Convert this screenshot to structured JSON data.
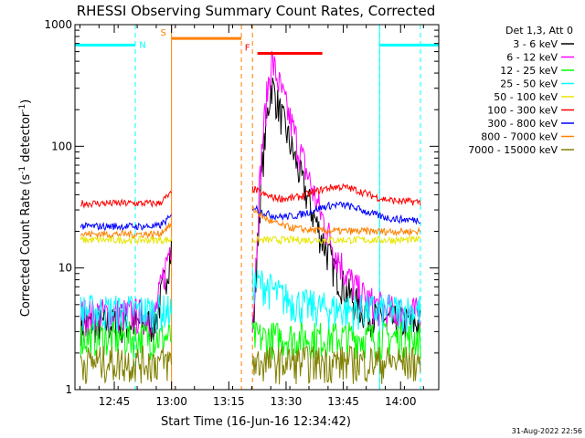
{
  "chart_data": {
    "type": "line",
    "title": "RHESSI Observing Summary Count Rates, Corrected",
    "xlabel": "Start Time (16-Jun-16 12:34:42)",
    "ylabel": "Corrected Count Rate (s⁻¹ detector⁻¹)",
    "ylabel_parts": {
      "main": "Corrected Count Rate (s",
      "sup1": "-1",
      "mid": " detector",
      "sup2": "-1",
      "end": ")"
    },
    "y_scale": "log",
    "ylim": [
      1,
      1000
    ],
    "xlim_minutes": [
      0,
      95.3
    ],
    "x_ticks": [
      {
        "t": 10.3,
        "label": "12:45"
      },
      {
        "t": 25.3,
        "label": "13:00"
      },
      {
        "t": 40.3,
        "label": "13:15"
      },
      {
        "t": 55.3,
        "label": "13:30"
      },
      {
        "t": 70.3,
        "label": "13:45"
      },
      {
        "t": 85.3,
        "label": "14:00"
      }
    ],
    "y_ticks": [
      {
        "v": 1,
        "label": "1"
      },
      {
        "v": 10,
        "label": "10"
      },
      {
        "v": 100,
        "label": "100"
      },
      {
        "v": 1000,
        "label": "1000"
      }
    ],
    "legend_title": "Det 1,3, Att 0",
    "legend_position": "right",
    "series": [
      {
        "name": "3 - 6 keV",
        "color": "#000000"
      },
      {
        "name": "6 - 12 keV",
        "color": "#ff00ff"
      },
      {
        "name": "12 - 25 keV",
        "color": "#00ff00"
      },
      {
        "name": "25 - 50 keV",
        "color": "#00ffff"
      },
      {
        "name": "50 - 100 keV",
        "color": "#e6e600"
      },
      {
        "name": "100 - 300 keV",
        "color": "#ff0000"
      },
      {
        "name": "300 - 800 keV",
        "color": "#0000ff"
      },
      {
        "name": "800 - 7000 keV",
        "color": "#ff8000"
      },
      {
        "name": "7000 - 15000 keV",
        "color": "#808000"
      }
    ],
    "data_segments": [
      {
        "start": 1.5,
        "end": 25.3,
        "levels": {
          "3 - 6 keV": 3.5,
          "6 - 12 keV": 4.2,
          "12 - 25 keV": 2.7,
          "25 - 50 keV": 4.5,
          "50 - 100 keV": 17,
          "100 - 300 keV": 34,
          "300 - 800 keV": 22,
          "800 - 7000 keV": 19,
          "7000 - 15000 keV": 1.7
        }
      },
      {
        "start": 46.5,
        "end": 90.5,
        "levels": {
          "3 - 6 keV": 3.5,
          "6 - 12 keV": 4.2,
          "12 - 25 keV": 2.7,
          "25 - 50 keV": 4.5,
          "50 - 100 keV": 17,
          "100 - 300 keV": 38,
          "300 - 800 keV": 27,
          "800 - 7000 keV": 20,
          "7000 - 15000 keV": 1.7
        }
      }
    ],
    "flare": {
      "start_time": "13:21",
      "peak_time": "13:24",
      "peak_value_3_6_keV": 330,
      "peak_value_6_12_keV": 520
    },
    "annotations": [
      {
        "label": "N",
        "color": "#00ffff",
        "kind": "night",
        "t_start": 0,
        "t_end": 15.8,
        "value": 680
      },
      {
        "label": "",
        "color": "#00ffff",
        "kind": "night",
        "t_start": 79.8,
        "t_end": 95.3,
        "value": 680
      },
      {
        "label": "S",
        "color": "#ff8000",
        "kind": "saa",
        "t_start": 25.3,
        "t_end": 43.6,
        "value": 770
      },
      {
        "label": "F",
        "color": "#ff0000",
        "kind": "flare",
        "t_start": 47.8,
        "t_end": 64.8,
        "value": 580
      }
    ],
    "dashed_markers": [
      {
        "t": 15.8,
        "color": "#00ffff"
      },
      {
        "t": 79.8,
        "color": "#00ffff"
      },
      {
        "t": 43.6,
        "color": "#ff8000"
      },
      {
        "t": 46.5,
        "color": "#ff8000"
      },
      {
        "t": 90.5,
        "color": "#00ffff"
      }
    ],
    "solid_markers": [
      {
        "t": 25.3,
        "color": "#ff8000"
      },
      {
        "t": 79.8,
        "color": "#00ffff"
      }
    ]
  },
  "footer_timestamp": "31-Aug-2022 22:56"
}
